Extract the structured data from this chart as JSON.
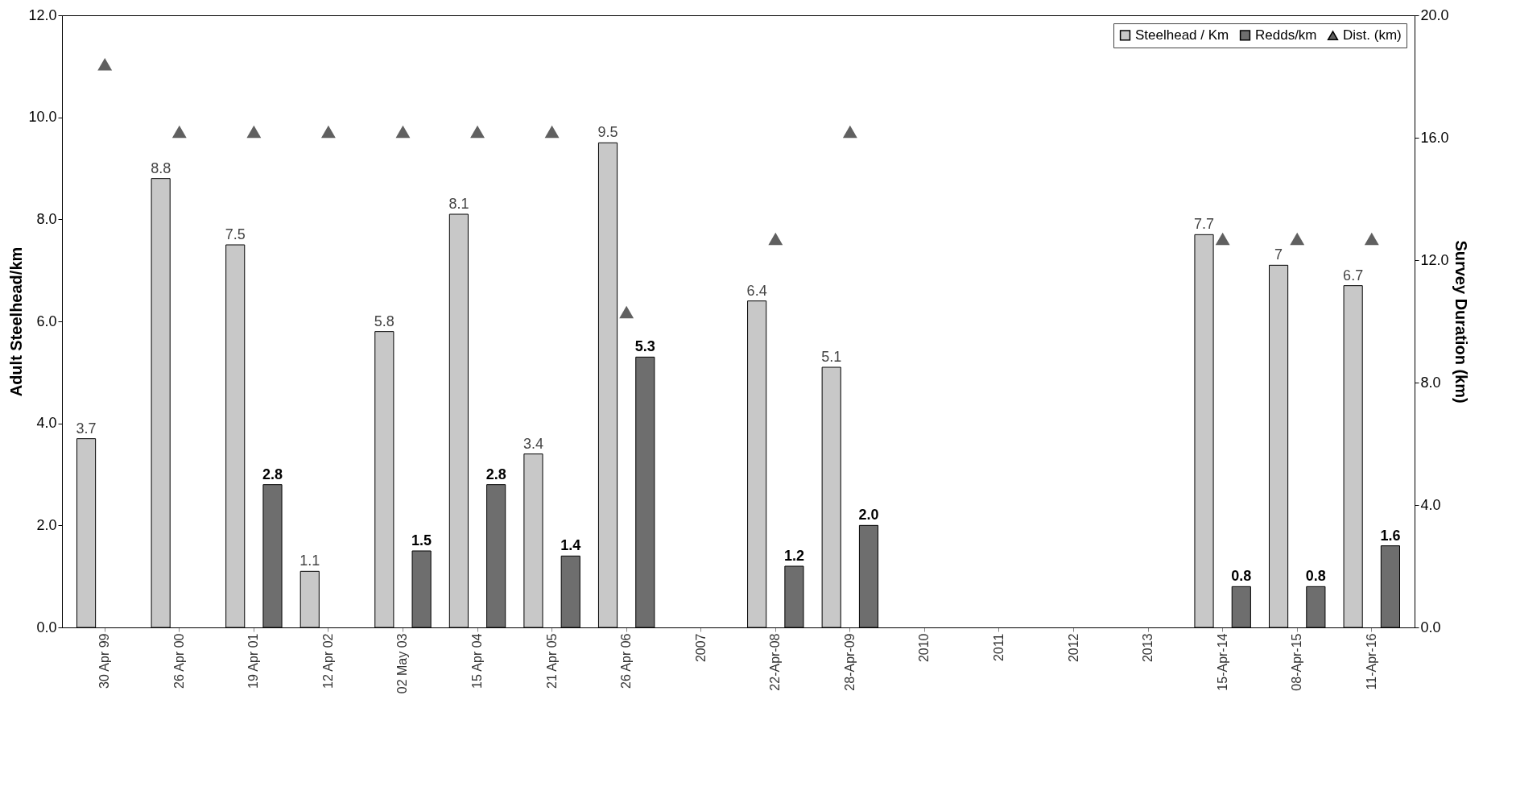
{
  "chart_data": {
    "type": "bar",
    "ylabel": "Adult Steelhead/km",
    "y2label": "Survey Duration (km)",
    "categories": [
      "30 Apr 99",
      "26 Apr 00",
      "19 Apr 01",
      "12 Apr 02",
      "02 May 03",
      "15 Apr 04",
      "21 Apr 05",
      "26 Apr 06",
      "2007",
      "22-Apr-08",
      "28-Apr-09",
      "2010",
      "2011",
      "2012",
      "2013",
      "15-Apr-14",
      "08-Apr-15",
      "11-Apr-16"
    ],
    "series": [
      {
        "name": "Steelhead / Km",
        "color": "#c8c8c8",
        "values": [
          3.7,
          8.8,
          7.5,
          1.1,
          5.8,
          8.1,
          3.4,
          9.5,
          null,
          6.4,
          5.1,
          null,
          null,
          null,
          null,
          7.7,
          7.1,
          6.7
        ],
        "value_labels": [
          "3.7",
          "8.8",
          "7.5",
          "1.1",
          "5.8",
          "8.1",
          "3.4",
          "9.5",
          null,
          "6.4",
          "5.1",
          null,
          null,
          null,
          null,
          "7.7",
          "7",
          "6.7"
        ]
      },
      {
        "name": "Redds/km",
        "color": "#6e6e6e",
        "values": [
          null,
          null,
          2.8,
          null,
          1.5,
          2.8,
          1.4,
          5.3,
          null,
          1.2,
          2.0,
          null,
          null,
          null,
          null,
          0.8,
          0.8,
          1.6
        ],
        "value_labels": [
          null,
          null,
          "2.8",
          null,
          "1.5",
          "2.8",
          "1.4",
          "5.3",
          null,
          "1.2",
          "2.0",
          null,
          null,
          null,
          null,
          "0.8",
          "0.8",
          "1.6"
        ]
      },
      {
        "name": "Dist. (km)",
        "type": "scatter",
        "axis": "y2",
        "marker": "triangle",
        "color": "#606060",
        "values": [
          18.4,
          16.2,
          16.2,
          16.2,
          16.2,
          16.2,
          16.2,
          10.3,
          null,
          12.7,
          16.2,
          null,
          null,
          null,
          null,
          12.7,
          12.7,
          12.7
        ]
      }
    ],
    "ylim": [
      0,
      12
    ],
    "yticks": [
      {
        "value": 0,
        "label": "0.0"
      },
      {
        "value": 2,
        "label": "2.0"
      },
      {
        "value": 4,
        "label": "4.0"
      },
      {
        "value": 6,
        "label": "6.0"
      },
      {
        "value": 8,
        "label": "8.0"
      },
      {
        "value": 10,
        "label": "10.0"
      },
      {
        "value": 12,
        "label": "12.0"
      }
    ],
    "y2lim": [
      0,
      20
    ],
    "y2ticks": [
      {
        "value": 0,
        "label": "0.0"
      },
      {
        "value": 4,
        "label": "4.0"
      },
      {
        "value": 8,
        "label": "8.0"
      },
      {
        "value": 12,
        "label": "12.0"
      },
      {
        "value": 16,
        "label": "16.0"
      },
      {
        "value": 20,
        "label": "20.0"
      }
    ],
    "legend": "top right",
    "grid": false
  }
}
